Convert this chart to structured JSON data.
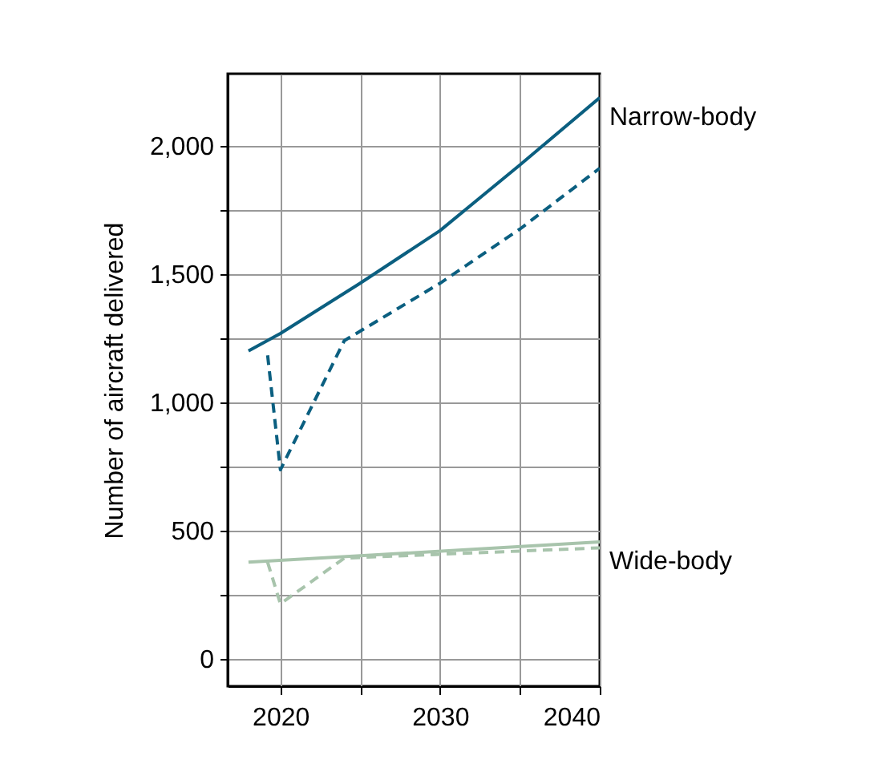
{
  "chart_data": {
    "type": "line",
    "ylabel": "Number of aircraft delivered",
    "xlim": [
      2016.7,
      2040
    ],
    "ylim": [
      -106,
      2280
    ],
    "xticks": [
      2020,
      {
        "value": 2025,
        "label": null
      },
      2030,
      {
        "value": 2035,
        "label": null
      },
      2040
    ],
    "yticks": [
      0,
      {
        "value": 250,
        "label": null
      },
      {
        "value": 500,
        "label": "500"
      },
      {
        "value": 750,
        "label": null
      },
      {
        "value": 1000,
        "label": "1,000"
      },
      {
        "value": 1250,
        "label": null
      },
      {
        "value": 1500,
        "label": "1,500"
      },
      {
        "value": 1750,
        "label": null
      },
      {
        "value": 2000,
        "label": "2,000"
      }
    ],
    "grid": true,
    "legend": false,
    "series": [
      {
        "name": "Narrow-body",
        "color": "#0b5f80",
        "line_style": "solid",
        "x": [
          2018,
          2020,
          2025,
          2030,
          2035,
          2040
        ],
        "values": [
          1200,
          1268,
          1464,
          1669,
          1925,
          2187
        ]
      },
      {
        "color": "#0b5f80",
        "line_style": "dashed",
        "x": [
          2019.2,
          2020,
          2024,
          2030,
          2035,
          2040
        ],
        "values": [
          1183,
          737,
          1240,
          1464,
          1675,
          1912
        ]
      },
      {
        "name": "Wide-body",
        "color": "#a8c4ac",
        "line_style": "solid",
        "x": [
          2018,
          2040
        ],
        "values": [
          377,
          456
        ]
      },
      {
        "color": "#a8c4ac",
        "line_style": "dashed",
        "x": [
          2019.2,
          2020,
          2024,
          2040
        ],
        "values": [
          377,
          215,
          393,
          433
        ]
      }
    ]
  }
}
